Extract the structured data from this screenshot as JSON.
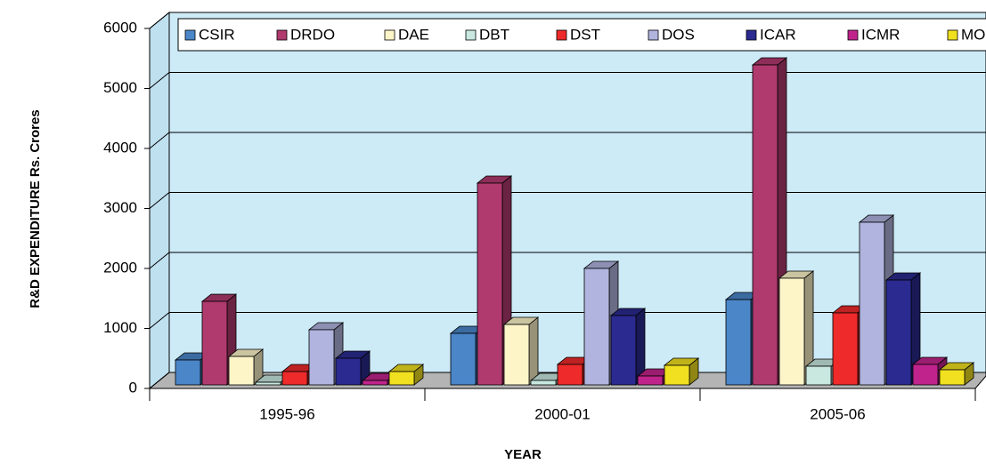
{
  "chart_data": {
    "type": "bar3d",
    "x_label": "YEAR",
    "y_label": "R&D EXPENDITURE Rs. Crores",
    "categories": [
      "1995-96",
      "2000-01",
      "2005-06"
    ],
    "series": [
      {
        "name": "CSIR",
        "color": "#4a86c8",
        "values": [
          415,
          859,
          1422
        ]
      },
      {
        "name": "DRDO",
        "color": "#b03a6e",
        "values": [
          1392,
          3363,
          5333
        ]
      },
      {
        "name": "DAE",
        "color": "#fdf5c8",
        "values": [
          474,
          1007,
          1778
        ]
      },
      {
        "name": "DBT",
        "color": "#c8e8e0",
        "values": [
          44,
          74,
          311
        ]
      },
      {
        "name": "DST",
        "color": "#ee2a2a",
        "values": [
          222,
          341,
          1200
        ]
      },
      {
        "name": "DOS",
        "color": "#b0b4de",
        "values": [
          919,
          1941,
          2711
        ]
      },
      {
        "name": "ICAR",
        "color": "#2a2a90",
        "values": [
          444,
          1156,
          1748
        ]
      },
      {
        "name": "ICMR",
        "color": "#c0248c",
        "values": [
          74,
          148,
          341
        ]
      },
      {
        "name": "MOEN",
        "color": "#f0e020",
        "values": [
          222,
          326,
          252
        ]
      }
    ],
    "ylim": [
      0,
      6000
    ],
    "yticks": [
      0,
      1000,
      2000,
      3000,
      4000,
      5000,
      6000
    ],
    "grid": true,
    "legend": "top"
  }
}
